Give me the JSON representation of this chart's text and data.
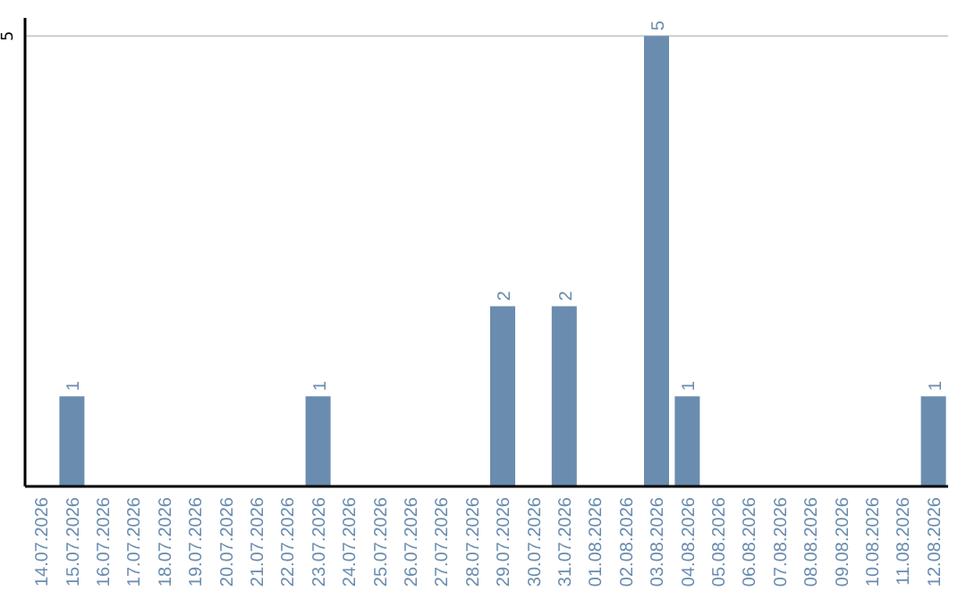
{
  "chart_data": {
    "type": "bar",
    "categories": [
      "14.07.2026",
      "15.07.2026",
      "16.07.2026",
      "17.07.2026",
      "18.07.2026",
      "19.07.2026",
      "20.07.2026",
      "21.07.2026",
      "22.07.2026",
      "23.07.2026",
      "24.07.2026",
      "25.07.2026",
      "26.07.2026",
      "27.07.2026",
      "28.07.2026",
      "29.07.2026",
      "30.07.2026",
      "31.07.2026",
      "01.08.2026",
      "02.08.2026",
      "03.08.2026",
      "04.08.2026",
      "05.08.2026",
      "06.08.2026",
      "07.08.2026",
      "08.08.2026",
      "09.08.2026",
      "10.08.2026",
      "11.08.2026",
      "12.08.2026"
    ],
    "values": [
      0,
      1,
      0,
      0,
      0,
      0,
      0,
      0,
      0,
      1,
      0,
      0,
      0,
      0,
      0,
      2,
      0,
      2,
      0,
      0,
      5,
      1,
      0,
      0,
      0,
      0,
      0,
      0,
      0,
      1
    ],
    "value_labels": [
      null,
      "1",
      null,
      null,
      null,
      null,
      null,
      null,
      null,
      "1",
      null,
      null,
      null,
      null,
      null,
      "2",
      null,
      "2",
      null,
      null,
      "5",
      "1",
      null,
      null,
      null,
      null,
      null,
      null,
      null,
      "1"
    ],
    "color": "#6a8caf",
    "ylim": [
      0,
      5.2
    ],
    "yticks": [
      5
    ],
    "grid": "y",
    "legend": false
  }
}
